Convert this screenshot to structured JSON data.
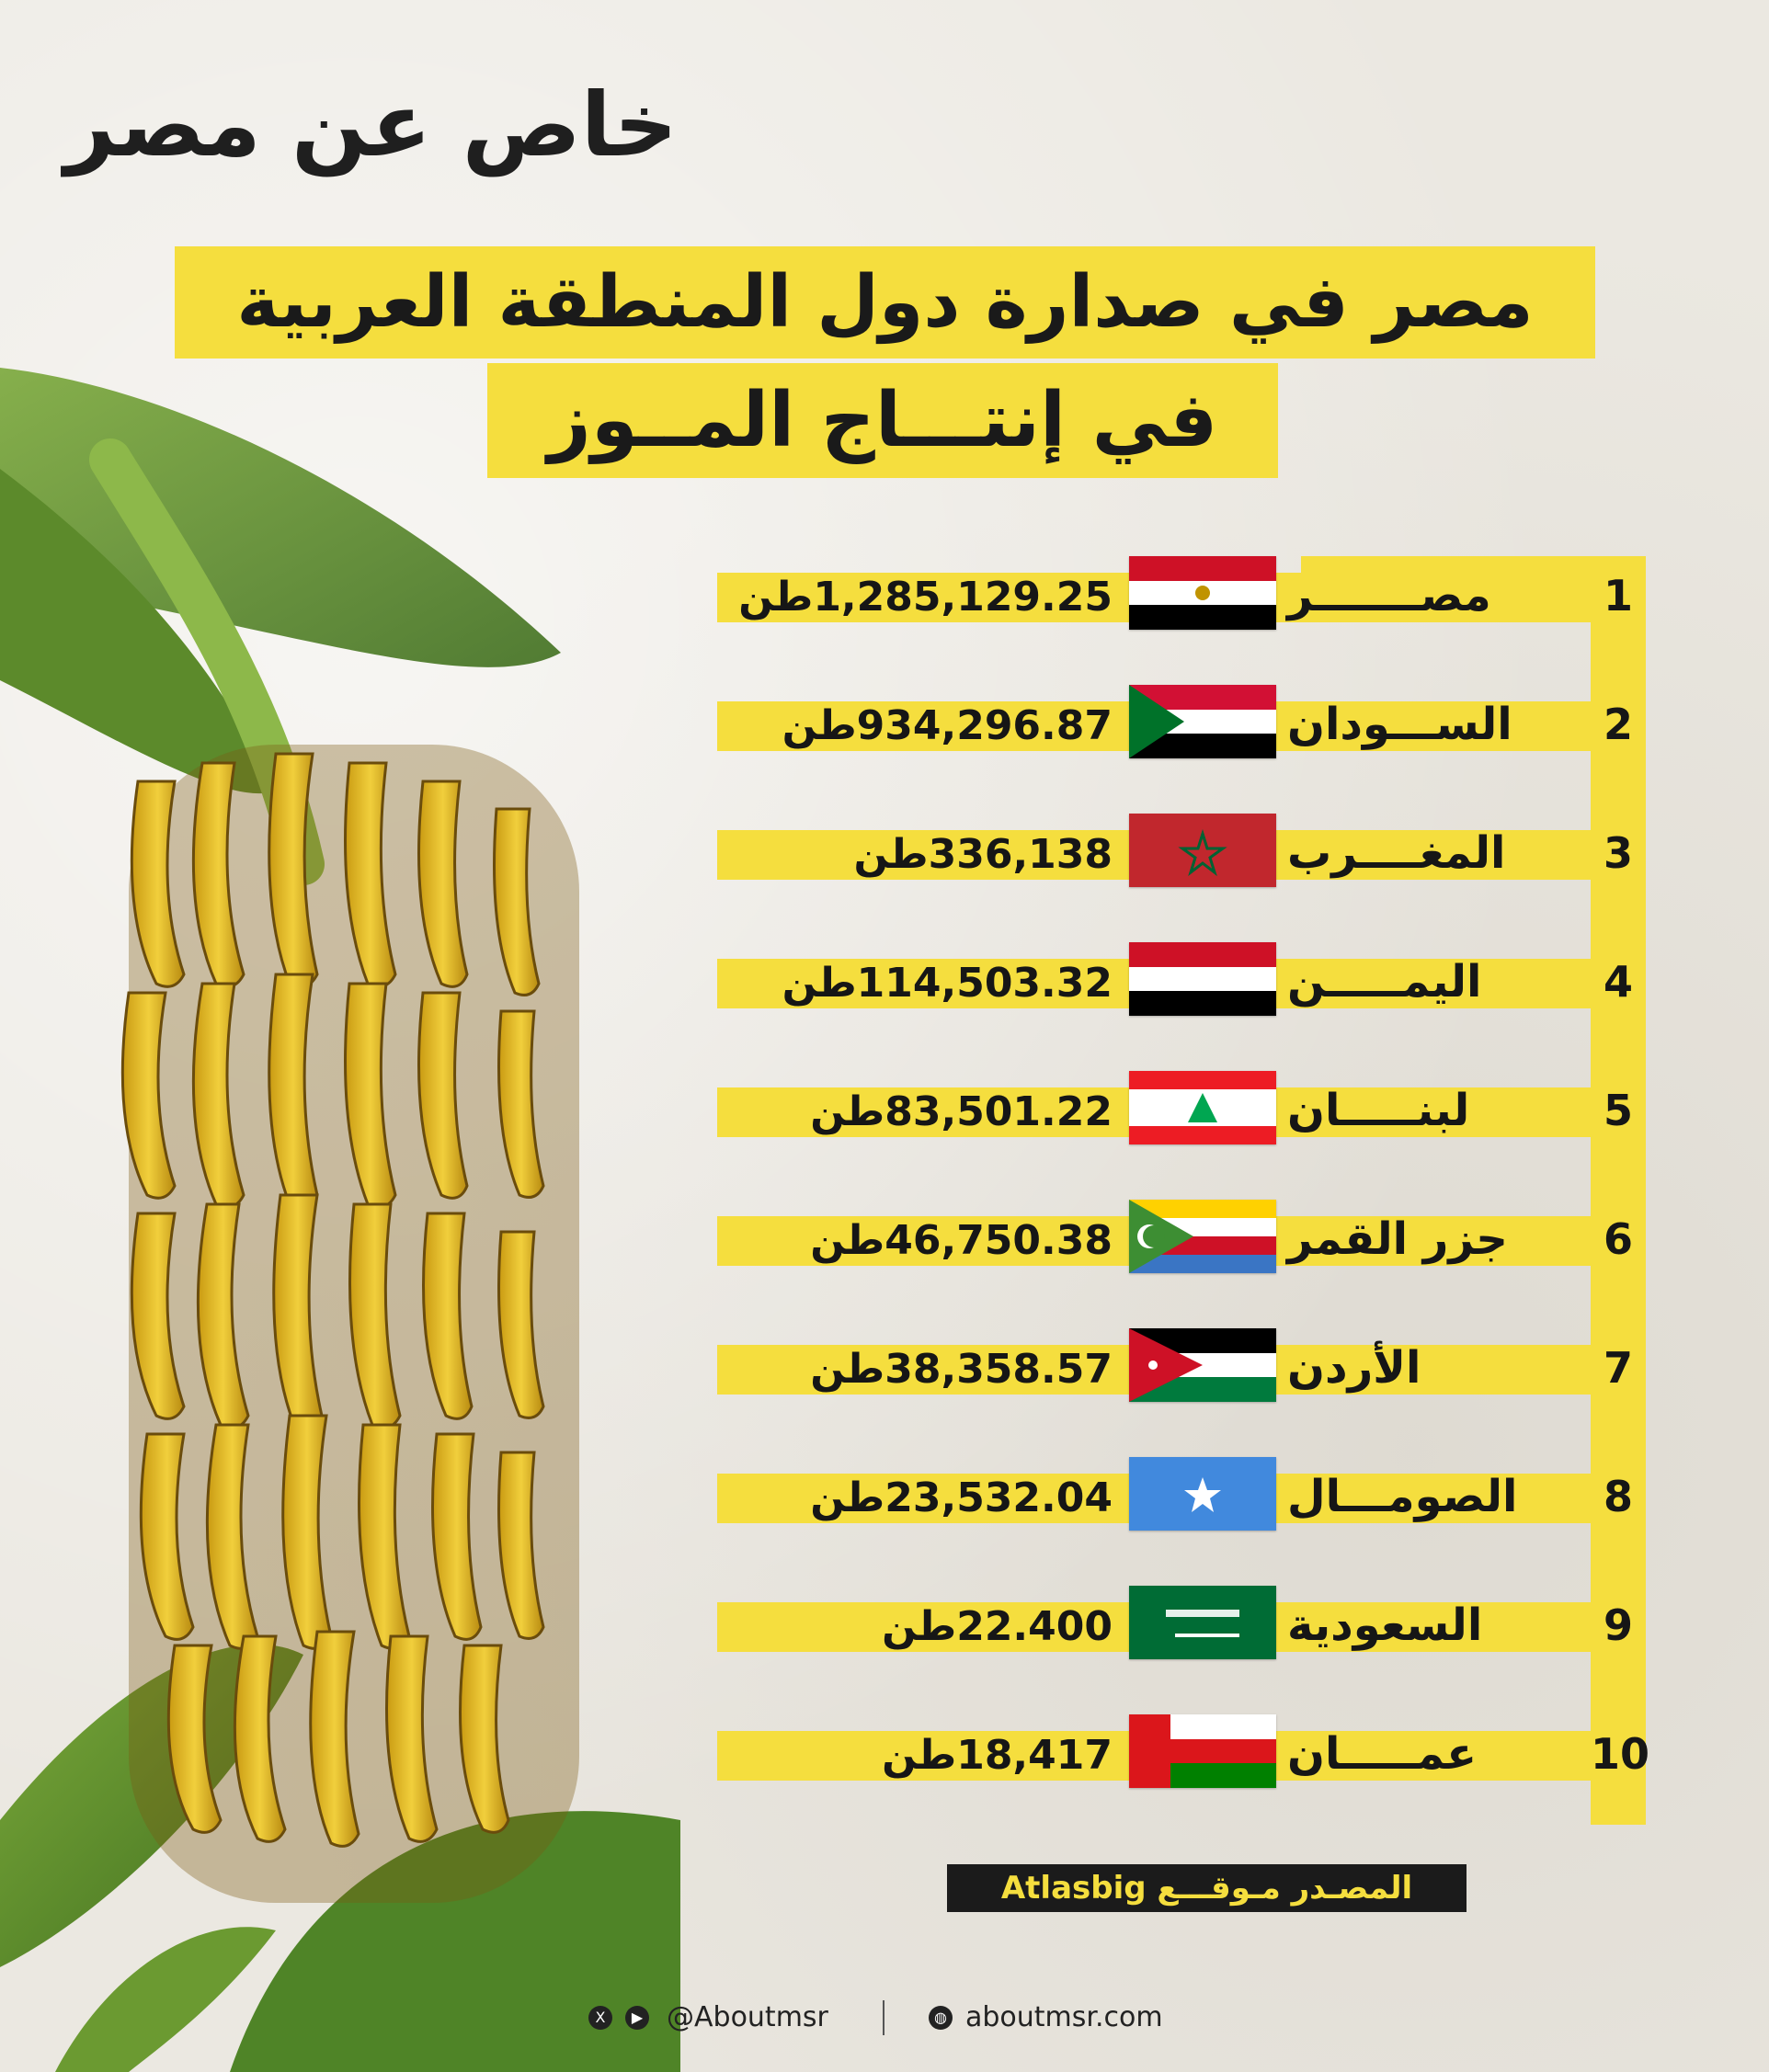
{
  "brand": {
    "logo_text": "خاص عن مصر"
  },
  "title": {
    "line1": "مصر في صدارة دول المنطقة العربية",
    "line2": "في إنتـــاج المــوز"
  },
  "rows": [
    {
      "rank": "1",
      "country": "مصـــــــر",
      "value": "1,285,129.25",
      "unit": "طن",
      "flag": "egypt-flag-icon"
    },
    {
      "rank": "2",
      "country": "الســـودان",
      "value": "934,296.87",
      "unit": "طن",
      "flag": "sudan-flag-icon"
    },
    {
      "rank": "3",
      "country": "المغــــرب",
      "value": "336,138",
      "unit": "طن",
      "flag": "morocco-flag-icon"
    },
    {
      "rank": "4",
      "country": "اليمـــــن",
      "value": "114,503.32",
      "unit": "طن",
      "flag": "yemen-flag-icon"
    },
    {
      "rank": "5",
      "country": "لبنـــــان",
      "value": "83,501.22",
      "unit": "طن",
      "flag": "lebanon-flag-icon"
    },
    {
      "rank": "6",
      "country": "جزر القمر",
      "value": "46,750.38",
      "unit": "طن",
      "flag": "comoros-flag-icon"
    },
    {
      "rank": "7",
      "country": "الأردن",
      "value": "38,358.57",
      "unit": "طن",
      "flag": "jordan-flag-icon"
    },
    {
      "rank": "8",
      "country": "الصومـــال",
      "value": "23,532.04",
      "unit": "طن",
      "flag": "somalia-flag-icon"
    },
    {
      "rank": "9",
      "country": "السعودية",
      "value": "22.400",
      "unit": "طن",
      "flag": "saudi-flag-icon"
    },
    {
      "rank": "10",
      "country": "عمـــــان",
      "value": "18,417",
      "unit": "طن",
      "flag": "oman-flag-icon"
    }
  ],
  "source": {
    "text": "المصـدر مـوقـــع Atlasbig"
  },
  "footer": {
    "handle": "@Aboutmsr",
    "site": "aboutmsr.com"
  },
  "colors": {
    "accent": "#f5de3e",
    "dark": "#1b1b1b"
  }
}
